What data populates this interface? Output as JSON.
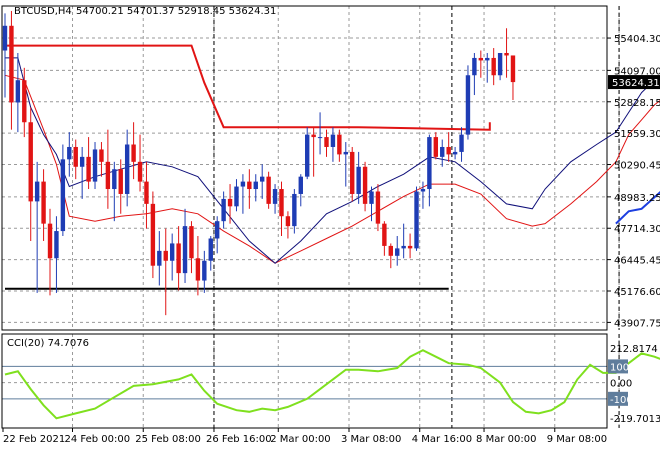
{
  "header": {
    "symbol": "BTCUSD,H4",
    "ohlc": "54700.21 54701.37 52918.45 53624.31"
  },
  "colors": {
    "bull": "#1e3cb4",
    "bear": "#e11414",
    "resistance": "#e11414",
    "support": "#000000",
    "fast_ma": "#10107a",
    "slow_ma": "#e11414",
    "trend_line": "#1d3fe0",
    "cci": "#7fe01e",
    "price_tag_bg": "#000000"
  },
  "chart_data": [
    {
      "type": "candlestick",
      "title": "BTCUSD,H4",
      "ylim": [
        43600,
        56700
      ],
      "y_ticks": [
        "55404.30",
        "54097.00",
        "52828.15",
        "51559.30",
        "50290.45",
        "48983.25",
        "47714.30",
        "46445.45",
        "45176.60",
        "43907.75"
      ],
      "current_price": "53624.31",
      "x_ticks": [
        "22 Feb 2021",
        "24 Feb 00:00",
        "25 Feb 08:00",
        "26 Feb 16:00",
        "2 Mar 00:00",
        "3 Mar 08:00",
        "4 Mar 16:00",
        "8 Mar 00:00",
        "9 Mar 08:00"
      ],
      "candles": [
        [
          54900,
          56400,
          53000,
          55900
        ],
        [
          55900,
          56500,
          51700,
          52800
        ],
        [
          52800,
          54800,
          51600,
          53700
        ],
        [
          53700,
          54200,
          51400,
          52000
        ],
        [
          52000,
          52600,
          47200,
          48800
        ],
        [
          48800,
          50400,
          45100,
          49600
        ],
        [
          49600,
          50100,
          47200,
          47900
        ],
        [
          47900,
          48500,
          45000,
          46500
        ],
        [
          46500,
          48200,
          45100,
          47600
        ],
        [
          47600,
          51100,
          47400,
          50500
        ],
        [
          50500,
          51600,
          49800,
          51000
        ],
        [
          51000,
          51300,
          49700,
          50200
        ],
        [
          50200,
          51000,
          48900,
          50600
        ],
        [
          50600,
          51400,
          49300,
          49600
        ],
        [
          49600,
          51200,
          49300,
          50900
        ],
        [
          50900,
          51200,
          49800,
          50400
        ],
        [
          50400,
          51700,
          48500,
          49300
        ],
        [
          49300,
          50400,
          48000,
          50100
        ],
        [
          50100,
          50500,
          48300,
          49100
        ],
        [
          49100,
          51700,
          48600,
          51100
        ],
        [
          51100,
          52000,
          49700,
          50400
        ],
        [
          50400,
          51500,
          49200,
          49600
        ],
        [
          49600,
          50400,
          47700,
          48700
        ],
        [
          48700,
          49200,
          45700,
          46200
        ],
        [
          46200,
          47600,
          45400,
          46800
        ],
        [
          46800,
          47700,
          44200,
          46400
        ],
        [
          46400,
          47500,
          45600,
          47100
        ],
        [
          47100,
          47800,
          45200,
          45900
        ],
        [
          45900,
          48500,
          45500,
          47800
        ],
        [
          47800,
          48000,
          45900,
          46500
        ],
        [
          46500,
          47400,
          45000,
          45600
        ],
        [
          45600,
          46800,
          45100,
          46400
        ],
        [
          46400,
          47400,
          46000,
          47300
        ],
        [
          47300,
          48200,
          46700,
          48000
        ],
        [
          48000,
          49200,
          47700,
          48900
        ],
        [
          48900,
          49500,
          47900,
          48600
        ],
        [
          48600,
          49700,
          48400,
          49400
        ],
        [
          49400,
          49900,
          48300,
          49600
        ],
        [
          49600,
          50100,
          48500,
          49300
        ],
        [
          49300,
          49900,
          48800,
          49600
        ],
        [
          49600,
          50300,
          48900,
          49800
        ],
        [
          49800,
          50000,
          48500,
          48700
        ],
        [
          48700,
          49500,
          48300,
          49300
        ],
        [
          49300,
          49600,
          47400,
          48200
        ],
        [
          48200,
          48400,
          47300,
          47800
        ],
        [
          47800,
          49300,
          47500,
          49100
        ],
        [
          49100,
          49900,
          48600,
          49800
        ],
        [
          49800,
          51800,
          49700,
          51500
        ],
        [
          51500,
          51800,
          49800,
          51400
        ],
        [
          51400,
          52400,
          50700,
          51400
        ],
        [
          51400,
          51700,
          50600,
          51000
        ],
        [
          51000,
          51800,
          50400,
          51500
        ],
        [
          51500,
          51700,
          50400,
          50700
        ],
        [
          50700,
          51200,
          49400,
          50800
        ],
        [
          50800,
          51000,
          48800,
          49100
        ],
        [
          49100,
          50800,
          48700,
          50200
        ],
        [
          50200,
          50400,
          48400,
          48700
        ],
        [
          48700,
          49400,
          48000,
          49200
        ],
        [
          49200,
          49500,
          47600,
          47900
        ],
        [
          47900,
          48000,
          46600,
          47000
        ],
        [
          47000,
          47100,
          46100,
          46600
        ],
        [
          46600,
          47400,
          46200,
          46900
        ],
        [
          46900,
          47900,
          46500,
          47000
        ],
        [
          47000,
          47500,
          46500,
          46900
        ],
        [
          46900,
          49400,
          46800,
          49200
        ],
        [
          49200,
          49600,
          48500,
          49300
        ],
        [
          49300,
          51500,
          48600,
          51400
        ],
        [
          51400,
          51600,
          50500,
          50600
        ],
        [
          50600,
          51300,
          50200,
          51000
        ],
        [
          51000,
          51600,
          50400,
          50700
        ],
        [
          50700,
          51000,
          50500,
          50800
        ],
        [
          50800,
          51800,
          50400,
          51500
        ],
        [
          51500,
          54300,
          51300,
          53900
        ],
        [
          53900,
          54800,
          53100,
          54600
        ],
        [
          54600,
          54900,
          53800,
          54500
        ],
        [
          54500,
          54800,
          53600,
          54600
        ],
        [
          54600,
          55000,
          53500,
          53900
        ],
        [
          53900,
          54800,
          53700,
          54800
        ],
        [
          54800,
          55800,
          53800,
          54700
        ],
        [
          54700,
          54700,
          52900,
          53624
        ]
      ],
      "resistance_level": [
        {
          "x": 0,
          "y": 55100
        },
        {
          "x": 29,
          "y": 55100
        },
        {
          "x": 31,
          "y": 53600
        },
        {
          "x": 34,
          "y": 51800
        },
        {
          "x": 55,
          "y": 51800
        },
        {
          "x": 75.4,
          "y": 51700
        },
        {
          "x": 75.4,
          "y": 52000
        }
      ],
      "support_level": [
        {
          "x": 0,
          "y": 45270
        },
        {
          "x": 69,
          "y": 45270
        }
      ],
      "trend_line": [
        {
          "x": 95,
          "y": 47900
        },
        {
          "x": 97,
          "y": 48400
        },
        {
          "x": 99,
          "y": 48500
        },
        {
          "x": 102,
          "y": 49200
        },
        {
          "x": 104,
          "y": 49400
        },
        {
          "x": 105,
          "y": 51000
        },
        {
          "x": 107,
          "y": 51000
        }
      ],
      "fast_ma": [
        {
          "x": 0,
          "y": 54600
        },
        {
          "x": 2,
          "y": 54600
        },
        {
          "x": 4,
          "y": 52600
        },
        {
          "x": 6,
          "y": 51500
        },
        {
          "x": 8,
          "y": 50700
        },
        {
          "x": 10,
          "y": 49400
        },
        {
          "x": 14,
          "y": 49800
        },
        {
          "x": 18,
          "y": 50100
        },
        {
          "x": 22,
          "y": 50400
        },
        {
          "x": 26,
          "y": 50200
        },
        {
          "x": 30,
          "y": 49800
        },
        {
          "x": 34,
          "y": 48500
        },
        {
          "x": 38,
          "y": 47200
        },
        {
          "x": 42,
          "y": 46300
        },
        {
          "x": 46,
          "y": 47200
        },
        {
          "x": 50,
          "y": 48300
        },
        {
          "x": 54,
          "y": 48800
        },
        {
          "x": 58,
          "y": 49400
        },
        {
          "x": 62,
          "y": 49900
        },
        {
          "x": 66,
          "y": 50600
        },
        {
          "x": 70,
          "y": 50400
        },
        {
          "x": 74,
          "y": 49600
        },
        {
          "x": 78,
          "y": 48700
        },
        {
          "x": 82,
          "y": 48500
        },
        {
          "x": 84,
          "y": 49300
        },
        {
          "x": 88,
          "y": 50400
        },
        {
          "x": 92,
          "y": 51100
        },
        {
          "x": 95,
          "y": 51600
        },
        {
          "x": 97,
          "y": 52400
        },
        {
          "x": 99,
          "y": 53200
        },
        {
          "x": 101,
          "y": 53700
        },
        {
          "x": 103,
          "y": 54100
        },
        {
          "x": 105,
          "y": 54300
        }
      ],
      "slow_ma": [
        {
          "x": 0,
          "y": 53900
        },
        {
          "x": 3,
          "y": 53700
        },
        {
          "x": 6,
          "y": 51700
        },
        {
          "x": 8,
          "y": 50300
        },
        {
          "x": 10,
          "y": 48200
        },
        {
          "x": 14,
          "y": 48000
        },
        {
          "x": 18,
          "y": 48200
        },
        {
          "x": 22,
          "y": 48300
        },
        {
          "x": 26,
          "y": 48500
        },
        {
          "x": 30,
          "y": 48300
        },
        {
          "x": 34,
          "y": 47600
        },
        {
          "x": 38,
          "y": 47000
        },
        {
          "x": 42,
          "y": 46300
        },
        {
          "x": 46,
          "y": 46800
        },
        {
          "x": 50,
          "y": 47300
        },
        {
          "x": 54,
          "y": 47800
        },
        {
          "x": 58,
          "y": 48400
        },
        {
          "x": 62,
          "y": 49000
        },
        {
          "x": 66,
          "y": 49500
        },
        {
          "x": 70,
          "y": 49500
        },
        {
          "x": 74,
          "y": 49100
        },
        {
          "x": 78,
          "y": 48100
        },
        {
          "x": 82,
          "y": 47800
        },
        {
          "x": 84,
          "y": 47900
        },
        {
          "x": 88,
          "y": 48700
        },
        {
          "x": 92,
          "y": 49600
        },
        {
          "x": 95,
          "y": 50400
        },
        {
          "x": 97,
          "y": 51500
        },
        {
          "x": 99,
          "y": 52100
        },
        {
          "x": 101,
          "y": 52700
        },
        {
          "x": 103,
          "y": 53100
        },
        {
          "x": 105,
          "y": 53100
        }
      ]
    },
    {
      "type": "line",
      "title": "CCI(20) 74.7076",
      "ylim": [
        -280,
        300
      ],
      "y_ticks": [
        "212.8174",
        "100",
        "0.00",
        "-100",
        "-219.7013"
      ],
      "levels": [
        100,
        -100
      ],
      "series": [
        {
          "values": [
            {
              "x": 0,
              "y": 50
            },
            {
              "x": 2,
              "y": 70
            },
            {
              "x": 4,
              "y": -40
            },
            {
              "x": 6,
              "y": -140
            },
            {
              "x": 8,
              "y": -220
            },
            {
              "x": 11,
              "y": -190
            },
            {
              "x": 14,
              "y": -160
            },
            {
              "x": 17,
              "y": -90
            },
            {
              "x": 20,
              "y": -20
            },
            {
              "x": 23,
              "y": -10
            },
            {
              "x": 27,
              "y": 20
            },
            {
              "x": 29,
              "y": 50
            },
            {
              "x": 31,
              "y": -50
            },
            {
              "x": 33,
              "y": -130
            },
            {
              "x": 36,
              "y": -170
            },
            {
              "x": 38,
              "y": -180
            },
            {
              "x": 40,
              "y": -160
            },
            {
              "x": 42,
              "y": -170
            },
            {
              "x": 44,
              "y": -150
            },
            {
              "x": 47,
              "y": -100
            },
            {
              "x": 49,
              "y": -40
            },
            {
              "x": 51,
              "y": 20
            },
            {
              "x": 53,
              "y": 80
            },
            {
              "x": 55,
              "y": 80
            },
            {
              "x": 58,
              "y": 70
            },
            {
              "x": 61,
              "y": 90
            },
            {
              "x": 63,
              "y": 160
            },
            {
              "x": 65,
              "y": 200
            },
            {
              "x": 67,
              "y": 160
            },
            {
              "x": 69,
              "y": 120
            },
            {
              "x": 72,
              "y": 110
            },
            {
              "x": 74,
              "y": 90
            },
            {
              "x": 77,
              "y": 0
            },
            {
              "x": 79,
              "y": -120
            },
            {
              "x": 81,
              "y": -180
            },
            {
              "x": 83,
              "y": -190
            },
            {
              "x": 85,
              "y": -170
            },
            {
              "x": 87,
              "y": -120
            },
            {
              "x": 89,
              "y": 20
            },
            {
              "x": 91,
              "y": 110
            },
            {
              "x": 93,
              "y": 60
            },
            {
              "x": 95,
              "y": 60
            },
            {
              "x": 97,
              "y": 120
            },
            {
              "x": 99,
              "y": 180
            },
            {
              "x": 101,
              "y": 160
            },
            {
              "x": 103,
              "y": 130
            },
            {
              "x": 105,
              "y": 110
            },
            {
              "x": 107,
              "y": 75
            }
          ]
        }
      ]
    }
  ]
}
